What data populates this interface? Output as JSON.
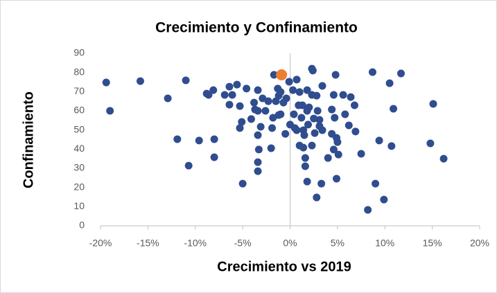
{
  "chart_data": {
    "type": "scatter",
    "title": "Crecimiento  y Confinamiento",
    "xlabel": "Crecimiento vs 2019",
    "ylabel": "Confinamiento",
    "series": [
      {
        "color": "#2f4d8f",
        "x": [
          -19.4,
          -19.0,
          -15.8,
          -12.9,
          -11.9,
          -11.0,
          -10.7,
          -9.6,
          -8.8,
          -8.6,
          -8.1,
          -8.0,
          -8.0,
          -6.9,
          -6.4,
          -6.4,
          -6.1,
          -5.6,
          -5.3,
          -5.0,
          -5.1,
          -4.6,
          -5.3,
          -4.1,
          -3.8,
          -3.7,
          -3.4,
          -3.4,
          -3.4,
          -3.4,
          -3.4,
          -3.3,
          -3.1,
          -2.9,
          -2.6,
          -2.3,
          -2.0,
          -1.9,
          -1.8,
          -1.7,
          -1.5,
          -1.3,
          -1.2,
          -1.0,
          -1.2,
          -1.0,
          -0.7,
          -0.5,
          -0.4,
          -0.1,
          0,
          0.3,
          0.4,
          0.5,
          0.7,
          0.7,
          0.9,
          1.0,
          1.0,
          1.2,
          1.3,
          1.4,
          1.4,
          1.5,
          1.6,
          1.6,
          1.8,
          1.8,
          1.9,
          2.0,
          1.8,
          2.3,
          2.3,
          2.4,
          2.3,
          2.5,
          2.6,
          2.8,
          2.8,
          2.9,
          3.1,
          3.1,
          3.3,
          3.4,
          3.4,
          4.0,
          4.4,
          4.4,
          4.6,
          4.6,
          4.7,
          4.8,
          4.9,
          4.9,
          5.1,
          5.0,
          5.6,
          5.8,
          6.2,
          6.4,
          6.8,
          6.9,
          7.5,
          8.2,
          8.7,
          9.0,
          9.4,
          9.9,
          10.5,
          10.7,
          10.9,
          11.7,
          14.8,
          15.1,
          16.2
        ],
        "values": [
          74.8,
          60,
          75.5,
          66.5,
          45.2,
          75.9,
          31.4,
          44.5,
          69,
          68.3,
          70.8,
          45.2,
          35.8,
          68.3,
          63.2,
          72.6,
          68.3,
          73.7,
          62.5,
          22,
          54.2,
          71.6,
          51,
          55.7,
          64.3,
          60.7,
          70.8,
          60,
          47.3,
          33.2,
          28.5,
          39.8,
          51.7,
          66.5,
          60,
          65,
          40.5,
          51,
          56.4,
          78.8,
          65,
          71.6,
          67.9,
          69.8,
          57.8,
          58.2,
          64.3,
          48,
          66.5,
          75.2,
          52.8,
          70.8,
          58.2,
          51,
          49.9,
          76.3,
          62.9,
          41.9,
          69.8,
          56.4,
          62.9,
          49.9,
          40.8,
          47.3,
          35.4,
          31.1,
          70.8,
          60,
          52.8,
          61.8,
          23.1,
          68.3,
          82,
          81,
          41.9,
          56,
          48.4,
          67.9,
          14.8,
          60,
          52,
          55.3,
          22,
          73,
          49.9,
          35.4,
          60.7,
          48,
          39.8,
          68.3,
          56.4,
          78.8,
          45.9,
          24.6,
          37.2,
          43.7,
          68.3,
          58.2,
          52.4,
          67.2,
          62.9,
          49.2,
          37.6,
          8.3,
          80.2,
          22,
          44.5,
          13.7,
          74.4,
          41.6,
          61.1,
          79.5,
          43,
          63.6,
          35
        ]
      },
      {
        "color": "#ed7d31",
        "x": [
          -0.9
        ],
        "values": [
          78.8
        ]
      }
    ],
    "xlim": [
      -20,
      20
    ],
    "xticks": [
      {
        "value": -20,
        "label": "-20%"
      },
      {
        "value": -15,
        "label": "-15%"
      },
      {
        "value": -10,
        "label": "-10%"
      },
      {
        "value": -5,
        "label": "-5%"
      },
      {
        "value": 0,
        "label": "0%"
      },
      {
        "value": 5,
        "label": "5%"
      },
      {
        "value": 10,
        "label": "10%"
      },
      {
        "value": 15,
        "label": "15%"
      },
      {
        "value": 20,
        "label": "20%"
      }
    ],
    "ylim": [
      0,
      90
    ],
    "yticks": [
      0,
      10,
      20,
      30,
      40,
      50,
      60,
      70,
      80,
      90
    ],
    "grid": false
  }
}
